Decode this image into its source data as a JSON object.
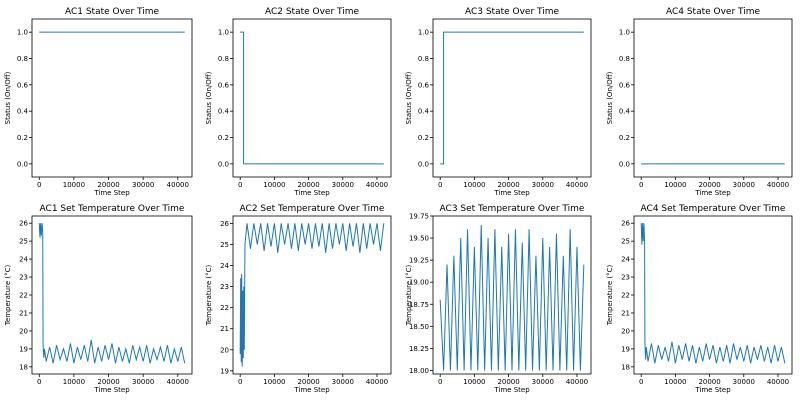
{
  "colors": {
    "line": "#1f77b4",
    "axis": "#000000",
    "background": "#ffffff"
  },
  "chart_data": [
    {
      "type": "line",
      "title": "AC1 State Over Time",
      "xlabel": "Time Step",
      "ylabel": "Status (On/Off)",
      "xlim": [
        -2100,
        44100
      ],
      "ylim": [
        -0.1,
        1.1
      ],
      "xticks": [
        0,
        10000,
        20000,
        30000,
        40000
      ],
      "yticks": [
        0.0,
        0.2,
        0.4,
        0.6,
        0.8,
        1.0
      ],
      "ytick_labels": [
        "0.0",
        "0.2",
        "0.4",
        "0.6",
        "0.8",
        "1.0"
      ],
      "grid": false,
      "series": [
        {
          "x": [
            0,
            42000
          ],
          "y": [
            1,
            1
          ]
        }
      ]
    },
    {
      "type": "line",
      "title": "AC2 State Over Time",
      "xlabel": "Time Step",
      "ylabel": "Status (On/Off)",
      "xlim": [
        -2100,
        44100
      ],
      "ylim": [
        -0.1,
        1.1
      ],
      "xticks": [
        0,
        10000,
        20000,
        30000,
        40000
      ],
      "yticks": [
        0.0,
        0.2,
        0.4,
        0.6,
        0.8,
        1.0
      ],
      "ytick_labels": [
        "0.0",
        "0.2",
        "0.4",
        "0.6",
        "0.8",
        "1.0"
      ],
      "grid": false,
      "series": [
        {
          "x": [
            0,
            1000,
            1000,
            42000
          ],
          "y": [
            1,
            1,
            0,
            0
          ]
        }
      ]
    },
    {
      "type": "line",
      "title": "AC3 State Over Time",
      "xlabel": "Time Step",
      "ylabel": "Status (On/Off)",
      "xlim": [
        -2100,
        44100
      ],
      "ylim": [
        -0.1,
        1.1
      ],
      "xticks": [
        0,
        10000,
        20000,
        30000,
        40000
      ],
      "yticks": [
        0.0,
        0.2,
        0.4,
        0.6,
        0.8,
        1.0
      ],
      "ytick_labels": [
        "0.0",
        "0.2",
        "0.4",
        "0.6",
        "0.8",
        "1.0"
      ],
      "grid": false,
      "series": [
        {
          "x": [
            0,
            1000,
            1000,
            42000
          ],
          "y": [
            0,
            0,
            1,
            1
          ]
        }
      ]
    },
    {
      "type": "line",
      "title": "AC4 State Over Time",
      "xlabel": "Time Step",
      "ylabel": "Status (On/Off)",
      "xlim": [
        -2100,
        44100
      ],
      "ylim": [
        -0.1,
        1.1
      ],
      "xticks": [
        0,
        10000,
        20000,
        30000,
        40000
      ],
      "yticks": [
        0.0,
        0.2,
        0.4,
        0.6,
        0.8,
        1.0
      ],
      "ytick_labels": [
        "0.0",
        "0.2",
        "0.4",
        "0.6",
        "0.8",
        "1.0"
      ],
      "grid": false,
      "series": [
        {
          "x": [
            0,
            42000
          ],
          "y": [
            0,
            0
          ]
        }
      ]
    },
    {
      "type": "line",
      "title": "AC1 Set Temperature Over Time",
      "xlabel": "Time Step",
      "ylabel": "Temperature (°C)",
      "xlim": [
        -2100,
        44100
      ],
      "ylim": [
        17.6,
        26.4
      ],
      "xticks": [
        0,
        10000,
        20000,
        30000,
        40000
      ],
      "yticks": [
        18,
        19,
        20,
        21,
        22,
        23,
        24,
        25,
        26
      ],
      "ytick_labels": [
        "18",
        "19",
        "20",
        "21",
        "22",
        "23",
        "24",
        "25",
        "26"
      ],
      "grid": false,
      "series": [
        {
          "x": [
            0,
            200,
            400,
            600,
            800,
            1000,
            1100,
            1300,
            1500,
            2000,
            3000,
            4000,
            5000,
            6000,
            7000,
            8000,
            9000,
            10000,
            11000,
            12000,
            13000,
            14000,
            15000,
            16000,
            17000,
            18000,
            19000,
            20000,
            21000,
            22000,
            23000,
            24000,
            25000,
            26000,
            27000,
            28000,
            29000,
            30000,
            31000,
            32000,
            33000,
            34000,
            35000,
            36000,
            37000,
            38000,
            39000,
            40000,
            41000,
            42000
          ],
          "y": [
            26,
            25.2,
            26,
            25.3,
            26,
            25.5,
            19.2,
            18.5,
            19,
            18.3,
            19.1,
            18.2,
            19.2,
            18.4,
            19.0,
            18.3,
            19.3,
            18.2,
            19.1,
            18.4,
            19.2,
            18.3,
            19.5,
            18.2,
            19.1,
            18.3,
            19.2,
            18.4,
            19.3,
            18.2,
            19.1,
            18.3,
            19.0,
            18.2,
            19.2,
            18.4,
            19.1,
            18.3,
            19.2,
            18.2,
            19.0,
            18.4,
            19.1,
            18.3,
            19.2,
            18.2,
            19.0,
            18.3,
            19.1,
            18.2
          ]
        }
      ]
    },
    {
      "type": "line",
      "title": "AC2 Set Temperature Over Time",
      "xlabel": "Time Step",
      "ylabel": "Temperature (°C)",
      "xlim": [
        -2100,
        44100
      ],
      "ylim": [
        18.85,
        26.35
      ],
      "xticks": [
        0,
        10000,
        20000,
        30000,
        40000
      ],
      "yticks": [
        19,
        20,
        21,
        22,
        23,
        24,
        25,
        26
      ],
      "ytick_labels": [
        "19",
        "20",
        "21",
        "22",
        "23",
        "24",
        "25",
        "26"
      ],
      "grid": false,
      "series": [
        {
          "x": [
            0,
            150,
            300,
            450,
            600,
            750,
            900,
            1050,
            1200,
            1400,
            2000,
            3000,
            4000,
            5000,
            6000,
            7000,
            8000,
            9000,
            10000,
            11000,
            12000,
            13000,
            14000,
            15000,
            16000,
            17000,
            18000,
            19000,
            20000,
            21000,
            22000,
            23000,
            24000,
            25000,
            26000,
            27000,
            28000,
            29000,
            30000,
            31000,
            32000,
            33000,
            34000,
            35000,
            36000,
            37000,
            38000,
            39000,
            40000,
            41000,
            42000
          ],
          "y": [
            19.8,
            23.4,
            19.4,
            23.6,
            19.2,
            22.8,
            19.6,
            23.0,
            20.0,
            25.0,
            26.0,
            24.8,
            26.0,
            25.0,
            26.0,
            24.7,
            26.0,
            24.9,
            26.0,
            24.6,
            26.0,
            25.0,
            26.0,
            24.8,
            26.0,
            24.7,
            26.0,
            25.0,
            26.0,
            24.8,
            26.0,
            24.9,
            26.0,
            24.6,
            26.0,
            24.8,
            26.0,
            25.0,
            26.0,
            24.7,
            26.0,
            24.9,
            26.0,
            24.6,
            26.0,
            24.8,
            26.0,
            25.0,
            26.0,
            24.7,
            26.0
          ]
        }
      ]
    },
    {
      "type": "line",
      "title": "AC3 Set Temperature Over Time",
      "xlabel": "Time Step",
      "ylabel": "Temperature (°C)",
      "xlim": [
        -2100,
        44100
      ],
      "ylim": [
        17.96,
        19.75
      ],
      "xticks": [
        0,
        10000,
        20000,
        30000,
        40000
      ],
      "yticks": [
        18.0,
        18.25,
        18.5,
        18.75,
        19.0,
        19.25,
        19.5,
        19.75
      ],
      "ytick_labels": [
        "18.00",
        "18.25",
        "18.50",
        "18.75",
        "19.00",
        "19.25",
        "19.50",
        "19.75"
      ],
      "grid": false,
      "series": [
        {
          "x": [
            0,
            1000,
            2000,
            3000,
            4000,
            5000,
            6000,
            7000,
            8000,
            9000,
            10000,
            11000,
            12000,
            13000,
            14000,
            15000,
            16000,
            17000,
            18000,
            19000,
            20000,
            21000,
            22000,
            23000,
            24000,
            25000,
            26000,
            27000,
            28000,
            29000,
            30000,
            31000,
            32000,
            33000,
            34000,
            35000,
            36000,
            37000,
            38000,
            39000,
            40000,
            41000,
            42000
          ],
          "y": [
            18.8,
            18.0,
            19.2,
            18.0,
            19.3,
            18.0,
            19.5,
            18.0,
            19.6,
            18.0,
            19.4,
            18.0,
            19.65,
            18.0,
            19.5,
            18.0,
            19.6,
            18.0,
            19.4,
            18.0,
            19.55,
            18.0,
            19.6,
            18.0,
            19.45,
            18.0,
            19.6,
            18.0,
            19.3,
            18.0,
            19.5,
            18.0,
            19.4,
            18.0,
            19.55,
            18.0,
            19.3,
            18.0,
            19.6,
            18.0,
            19.4,
            18.0,
            19.2
          ]
        }
      ]
    },
    {
      "type": "line",
      "title": "AC4 Set Temperature Over Time",
      "xlabel": "Time Step",
      "ylabel": "Temperature (°C)",
      "xlim": [
        -2100,
        44100
      ],
      "ylim": [
        17.6,
        26.4
      ],
      "xticks": [
        0,
        10000,
        20000,
        30000,
        40000
      ],
      "yticks": [
        18,
        19,
        20,
        21,
        22,
        23,
        24,
        25,
        26
      ],
      "ytick_labels": [
        "18",
        "19",
        "20",
        "21",
        "22",
        "23",
        "24",
        "25",
        "26"
      ],
      "grid": false,
      "series": [
        {
          "x": [
            0,
            200,
            400,
            600,
            800,
            1000,
            1100,
            1300,
            1500,
            2000,
            3000,
            4000,
            5000,
            6000,
            7000,
            8000,
            9000,
            10000,
            11000,
            12000,
            13000,
            14000,
            15000,
            16000,
            17000,
            18000,
            19000,
            20000,
            21000,
            22000,
            23000,
            24000,
            25000,
            26000,
            27000,
            28000,
            29000,
            30000,
            31000,
            32000,
            33000,
            34000,
            35000,
            36000,
            37000,
            38000,
            39000,
            40000,
            41000,
            42000
          ],
          "y": [
            26,
            24.8,
            26,
            25.0,
            26,
            24.9,
            19.3,
            18.4,
            19.1,
            18.3,
            19.3,
            18.2,
            19.2,
            18.4,
            19.1,
            18.3,
            19.4,
            18.2,
            19.2,
            18.4,
            19.3,
            18.3,
            19.2,
            18.2,
            19.1,
            18.3,
            19.3,
            18.4,
            19.2,
            18.2,
            19.1,
            18.3,
            19.2,
            18.2,
            19.3,
            18.4,
            19.1,
            18.3,
            19.2,
            18.2,
            19.1,
            18.4,
            19.2,
            18.3,
            19.1,
            18.2,
            19.2,
            18.3,
            19.1,
            18.2
          ]
        }
      ]
    }
  ]
}
